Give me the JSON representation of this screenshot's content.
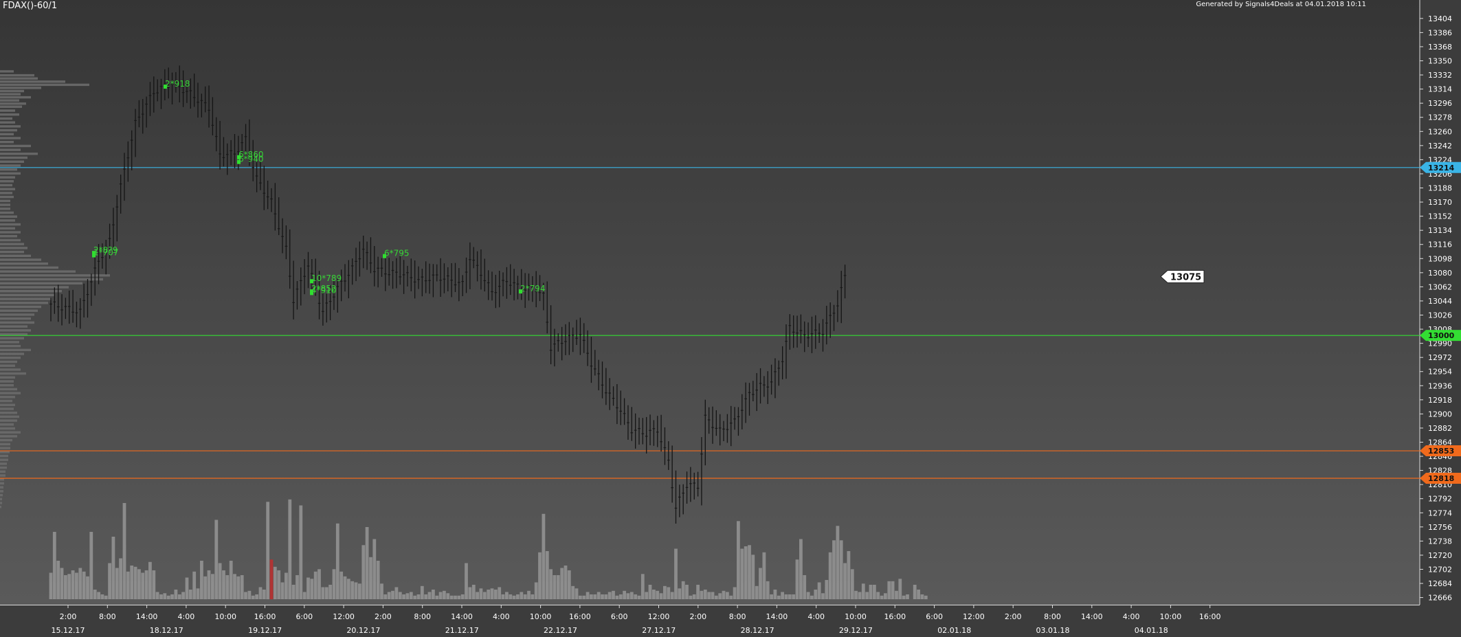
{
  "chart_data": {
    "type": "candlestick",
    "title": "FDAX()-60/1",
    "subtitle": "Generated by Signals4Deals at 04.01.2018 10:11",
    "y_ticks": [
      13404,
      13386,
      13368,
      13350,
      13332,
      13314,
      13296,
      13278,
      13260,
      13242,
      13224,
      13206,
      13188,
      13170,
      13152,
      13134,
      13116,
      13098,
      13080,
      13062,
      13044,
      13026,
      13008,
      12990,
      12972,
      12954,
      12936,
      12918,
      12900,
      12882,
      12864,
      12846,
      12828,
      12810,
      12792,
      12774,
      12756,
      12738,
      12720,
      12702,
      12684,
      12666
    ],
    "ylim": [
      12649,
      13417
    ],
    "x_time_labels": [
      "2:00",
      "8:00",
      "14:00",
      "4:00",
      "10:00",
      "16:00",
      "6:00",
      "12:00",
      "2:00",
      "8:00",
      "14:00",
      "4:00",
      "10:00",
      "16:00",
      "6:00",
      "12:00",
      "2:00",
      "8:00",
      "14:00",
      "4:00",
      "10:00",
      "16:00",
      "6:00",
      "12:00",
      "2:00",
      "8:00",
      "14:00",
      "4:00",
      "10:00",
      "16:00"
    ],
    "x_date_labels": [
      "15.12.17",
      "18.12.17",
      "19.12.17",
      "20.12.17",
      "21.12.17",
      "22.12.17",
      "27.12.17",
      "28.12.17",
      "29.12.17",
      "02.01.18",
      "03.01.18",
      "04.01.18"
    ],
    "levels": [
      {
        "label": "13214",
        "value": 13214,
        "color": "#3ab4e6"
      },
      {
        "label": "13000",
        "value": 13000,
        "color": "#33dd33"
      },
      {
        "label": "12853",
        "value": 12853,
        "color": "#f06a1c"
      },
      {
        "label": "12818",
        "value": 12818,
        "color": "#f06a1c"
      }
    ],
    "last_price": {
      "label": "13075",
      "value": 13075
    },
    "signals": [
      {
        "text": "2*918",
        "value": 13318
      },
      {
        "text": "6*860",
        "value": 13228
      },
      {
        "text": "6*940",
        "value": 13222
      },
      {
        "text": "2*8?9",
        "value": 13106
      },
      {
        "text": "1*707",
        "value": 13103
      },
      {
        "text": "10*789",
        "value": 13070
      },
      {
        "text": "2*852",
        "value": 13057
      },
      {
        "text": "4*910",
        "value": 13055
      },
      {
        "text": "6*795",
        "value": 13102
      },
      {
        "text": "2*794",
        "value": 13057
      }
    ],
    "price_path": [
      [
        0,
        13040
      ],
      [
        8,
        13030
      ],
      [
        13,
        13095
      ],
      [
        16,
        13120
      ],
      [
        19,
        13190
      ],
      [
        23,
        13270
      ],
      [
        28,
        13310
      ],
      [
        33,
        13322
      ],
      [
        38,
        13308
      ],
      [
        43,
        13290
      ],
      [
        46,
        13230
      ],
      [
        50,
        13232
      ],
      [
        53,
        13250
      ],
      [
        56,
        13200
      ],
      [
        60,
        13170
      ],
      [
        64,
        13110
      ],
      [
        66,
        13045
      ],
      [
        70,
        13090
      ],
      [
        74,
        13030
      ],
      [
        78,
        13060
      ],
      [
        82,
        13085
      ],
      [
        85,
        13110
      ],
      [
        88,
        13085
      ],
      [
        92,
        13080
      ],
      [
        96,
        13078
      ],
      [
        100,
        13070
      ],
      [
        105,
        13075
      ],
      [
        108,
        13072
      ],
      [
        112,
        13065
      ],
      [
        114,
        13100
      ],
      [
        117,
        13080
      ],
      [
        120,
        13055
      ],
      [
        124,
        13070
      ],
      [
        128,
        13060
      ],
      [
        132,
        13060
      ],
      [
        134,
        13050
      ],
      [
        136,
        12985
      ],
      [
        140,
        12995
      ],
      [
        144,
        13002
      ],
      [
        147,
        12965
      ],
      [
        151,
        12930
      ],
      [
        155,
        12905
      ],
      [
        158,
        12880
      ],
      [
        162,
        12875
      ],
      [
        165,
        12880
      ],
      [
        168,
        12840
      ],
      [
        170,
        12780
      ],
      [
        173,
        12810
      ],
      [
        176,
        12808
      ],
      [
        178,
        12895
      ],
      [
        182,
        12878
      ],
      [
        186,
        12890
      ],
      [
        190,
        12925
      ],
      [
        193,
        12935
      ],
      [
        196,
        12940
      ],
      [
        199,
        12970
      ],
      [
        201,
        13010
      ],
      [
        205,
        13000
      ],
      [
        210,
        13005
      ],
      [
        214,
        13040
      ],
      [
        216,
        13075
      ]
    ],
    "volume_max": 1000,
    "volumes": [
      220,
      560,
      320,
      260,
      200,
      210,
      240,
      220,
      260,
      230,
      190,
      560,
      80,
      60,
      40,
      30,
      300,
      520,
      260,
      340,
      800,
      230,
      280,
      270,
      250,
      220,
      240,
      310,
      240,
      60,
      40,
      50,
      30,
      40,
      80,
      40,
      60,
      180,
      80,
      230,
      90,
      320,
      190,
      240,
      210,
      660,
      300,
      240,
      200,
      320,
      210,
      190,
      200,
      60,
      70,
      30,
      40,
      100,
      80,
      810,
      330,
      270,
      240,
      140,
      220,
      830,
      120,
      200,
      780,
      60,
      180,
      170,
      230,
      250,
      100,
      100,
      120,
      250,
      630,
      230,
      190,
      170,
      150,
      140,
      130,
      450,
      600,
      350,
      500,
      320,
      130,
      40,
      60,
      70,
      100,
      60,
      40,
      50,
      60,
      30,
      40,
      110,
      40,
      60,
      80,
      30,
      60,
      70,
      50,
      30,
      30,
      30,
      40,
      300,
      100,
      120,
      60,
      90,
      60,
      80,
      90,
      80,
      100,
      40,
      60,
      40,
      30,
      40,
      60,
      40,
      70,
      40,
      140,
      390,
      710,
      400,
      250,
      200,
      200,
      260,
      280,
      240,
      110,
      90,
      30,
      30,
      60,
      40,
      40,
      60,
      40,
      40,
      60,
      70,
      30,
      40,
      70,
      50,
      60,
      40,
      30,
      210,
      60,
      120,
      80,
      70,
      50,
      110,
      100,
      60,
      420,
      90,
      150,
      120,
      30,
      40,
      120,
      70,
      80,
      60,
      60,
      30,
      50,
      70,
      60,
      30,
      100,
      650,
      420,
      440,
      450,
      370,
      110,
      260,
      390,
      150,
      40,
      80,
      30,
      60,
      40,
      40,
      40,
      330,
      500,
      200,
      60,
      30,
      80,
      140,
      50,
      160,
      390,
      490,
      610,
      490,
      300,
      400,
      250,
      70,
      60,
      130,
      60,
      120,
      120,
      60,
      30,
      50,
      150,
      150,
      70,
      170,
      30,
      40,
      0,
      120,
      80,
      40,
      30
    ],
    "volume_highlight_index": 60,
    "profile": [
      [
        13335,
        20
      ],
      [
        13330,
        50
      ],
      [
        13326,
        55
      ],
      [
        13322,
        95
      ],
      [
        13318,
        130
      ],
      [
        13314,
        60
      ],
      [
        13310,
        35
      ],
      [
        13306,
        30
      ],
      [
        13302,
        45
      ],
      [
        13298,
        28
      ],
      [
        13294,
        38
      ],
      [
        13290,
        32
      ],
      [
        13285,
        22
      ],
      [
        13280,
        28
      ],
      [
        13275,
        18
      ],
      [
        13270,
        22
      ],
      [
        13265,
        30
      ],
      [
        13260,
        25
      ],
      [
        13255,
        20
      ],
      [
        13250,
        30
      ],
      [
        13245,
        20
      ],
      [
        13240,
        45
      ],
      [
        13235,
        30
      ],
      [
        13230,
        55
      ],
      [
        13225,
        40
      ],
      [
        13220,
        35
      ],
      [
        13215,
        30
      ],
      [
        13210,
        25
      ],
      [
        13205,
        30
      ],
      [
        13200,
        22
      ],
      [
        13195,
        20
      ],
      [
        13190,
        18
      ],
      [
        13185,
        22
      ],
      [
        13180,
        18
      ],
      [
        13175,
        20
      ],
      [
        13170,
        15
      ],
      [
        13165,
        15
      ],
      [
        13160,
        15
      ],
      [
        13155,
        20
      ],
      [
        13150,
        25
      ],
      [
        13145,
        22
      ],
      [
        13140,
        30
      ],
      [
        13135,
        22
      ],
      [
        13130,
        30
      ],
      [
        13125,
        25
      ],
      [
        13120,
        30
      ],
      [
        13115,
        35
      ],
      [
        13110,
        40
      ],
      [
        13105,
        35
      ],
      [
        13100,
        45
      ],
      [
        13095,
        60
      ],
      [
        13090,
        70
      ],
      [
        13085,
        85
      ],
      [
        13080,
        110
      ],
      [
        13075,
        160
      ],
      [
        13070,
        150
      ],
      [
        13065,
        120
      ],
      [
        13060,
        100
      ],
      [
        13055,
        90
      ],
      [
        13050,
        80
      ],
      [
        13045,
        75
      ],
      [
        13040,
        70
      ],
      [
        13035,
        60
      ],
      [
        13030,
        55
      ],
      [
        13025,
        50
      ],
      [
        13020,
        45
      ],
      [
        13015,
        50
      ],
      [
        13010,
        40
      ],
      [
        13005,
        45
      ],
      [
        13000,
        40
      ],
      [
        12995,
        35
      ],
      [
        12990,
        28
      ],
      [
        12985,
        30
      ],
      [
        12980,
        45
      ],
      [
        12975,
        35
      ],
      [
        12970,
        30
      ],
      [
        12965,
        25
      ],
      [
        12960,
        22
      ],
      [
        12955,
        30
      ],
      [
        12950,
        38
      ],
      [
        12945,
        22
      ],
      [
        12940,
        20
      ],
      [
        12935,
        20
      ],
      [
        12930,
        25
      ],
      [
        12925,
        30
      ],
      [
        12920,
        22
      ],
      [
        12915,
        18
      ],
      [
        12910,
        22
      ],
      [
        12905,
        20
      ],
      [
        12900,
        25
      ],
      [
        12895,
        28
      ],
      [
        12890,
        25
      ],
      [
        12885,
        20
      ],
      [
        12880,
        22
      ],
      [
        12875,
        30
      ],
      [
        12870,
        25
      ],
      [
        12865,
        18
      ],
      [
        12860,
        15
      ],
      [
        12855,
        15
      ],
      [
        12850,
        14
      ],
      [
        12845,
        12
      ],
      [
        12840,
        12
      ],
      [
        12835,
        10
      ],
      [
        12830,
        10
      ],
      [
        12825,
        8
      ],
      [
        12820,
        8
      ],
      [
        12815,
        6
      ],
      [
        12810,
        6
      ],
      [
        12805,
        5
      ],
      [
        12800,
        5
      ],
      [
        12795,
        4
      ],
      [
        12790,
        3
      ],
      [
        12785,
        3
      ],
      [
        12780,
        2
      ]
    ]
  }
}
